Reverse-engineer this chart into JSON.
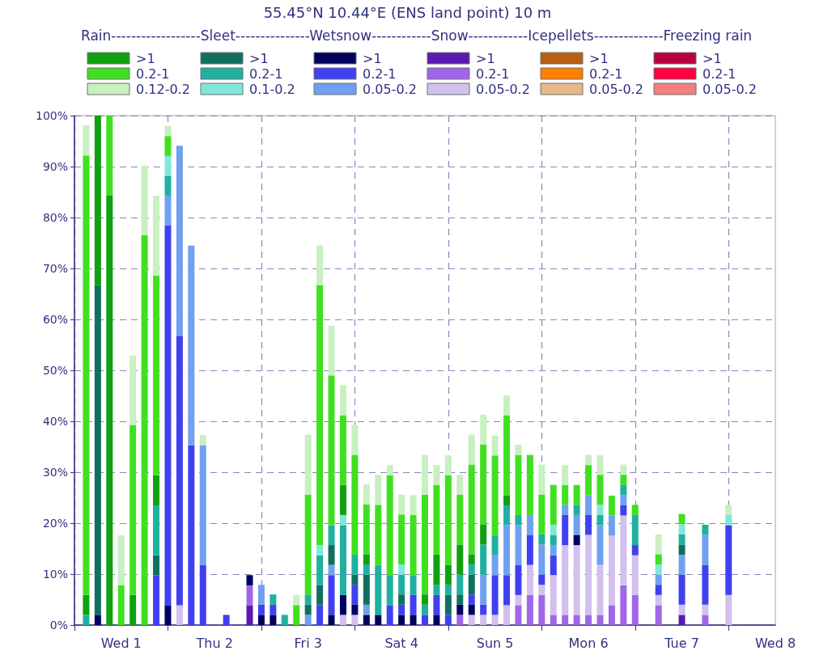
{
  "chart_data": {
    "type": "bar",
    "stacked": true,
    "title": "55.45°N 10.44°E (ENS land point) 10 m",
    "legend_title": "Rain------------------Sleet---------------Wetsnow------------Snow------------Icepellets--------------Freezing rain",
    "legend": "top",
    "grid": true,
    "categories": [
      null,
      null,
      null,
      null,
      "Wed 1",
      null,
      null,
      null,
      null,
      null,
      null,
      null,
      "Thu 2",
      null,
      null,
      null,
      null,
      null,
      null,
      null,
      "Fri 3",
      null,
      null,
      null,
      null,
      null,
      null,
      null,
      "Sat 4",
      null,
      null,
      null,
      null,
      null,
      null,
      null,
      "Sun 5",
      null,
      null,
      null,
      null,
      null,
      null,
      null,
      "Mon 6",
      null,
      null,
      null,
      null,
      null,
      null,
      null,
      "Tue 7",
      null,
      null,
      null,
      null,
      null,
      null,
      null,
      "Wed 8"
    ],
    "ylim": [
      0,
      100
    ],
    "yticks": [
      {
        "value": 0,
        "label": "0%"
      },
      {
        "value": 10,
        "label": "10%"
      },
      {
        "value": 20,
        "label": "20%"
      },
      {
        "value": 30,
        "label": "30%"
      },
      {
        "value": 40,
        "label": "40%"
      },
      {
        "value": 50,
        "label": "50%"
      },
      {
        "value": 60,
        "label": "60%"
      },
      {
        "value": 70,
        "label": "70%"
      },
      {
        "value": 80,
        "label": "80%"
      },
      {
        "value": 90,
        "label": "90%"
      },
      {
        "value": 100,
        "label": "100%"
      }
    ],
    "series": [
      {
        "name": ">1",
        "color": "#5a1ab0",
        "values": [
          0,
          0,
          0,
          0,
          0,
          0,
          0,
          0,
          0,
          0,
          0,
          0,
          0,
          0,
          0,
          3.9,
          0,
          0,
          0,
          0,
          0,
          0,
          0,
          0,
          0,
          0,
          0,
          0,
          0,
          0,
          0,
          0,
          0,
          0,
          0,
          0,
          0,
          0,
          0,
          0,
          0,
          0,
          0,
          0,
          0,
          0,
          0,
          0,
          0,
          0,
          0,
          0,
          2,
          0,
          0,
          0,
          0,
          0,
          0,
          0,
          0
        ]
      },
      {
        "name": "0.2-1",
        "color": "#a066e8",
        "values": [
          0,
          0,
          0,
          0,
          0,
          0,
          0,
          0,
          0,
          0,
          0,
          0,
          0,
          0,
          0,
          3.9,
          0,
          0,
          0,
          0,
          0,
          0,
          0,
          0,
          0,
          0,
          0,
          0,
          0,
          0,
          0,
          0,
          0,
          2,
          0,
          0,
          0,
          0,
          3.9,
          5.9,
          5.9,
          2,
          2,
          2,
          2,
          2,
          3.9,
          7.8,
          5.9,
          0,
          3.9,
          0,
          0,
          0,
          2,
          0,
          0,
          0,
          0,
          0,
          0
        ]
      },
      {
        "name": "0.05-0.2",
        "color": "#d2c0ee",
        "values": [
          0,
          0,
          0,
          0,
          0,
          0,
          0,
          0,
          0,
          3.9,
          0,
          0,
          0,
          0,
          0,
          0,
          0,
          0,
          0,
          0,
          0,
          0,
          0,
          2,
          2,
          0,
          0,
          0,
          0,
          0,
          0,
          0,
          0,
          0,
          2,
          2,
          2,
          3.9,
          2,
          5.9,
          2,
          7.8,
          13.7,
          13.7,
          15.7,
          9.8,
          13.7,
          13.7,
          7.8,
          0,
          2,
          0,
          2,
          0,
          2,
          0,
          5.9,
          0,
          0,
          0,
          0
        ]
      },
      {
        "name": ">1",
        "color": "#000060",
        "values": [
          0,
          0,
          2,
          0,
          0,
          0,
          0,
          0,
          3.9,
          0,
          0,
          0,
          0,
          0,
          0,
          2,
          2,
          2,
          0,
          0,
          0,
          0,
          2,
          3.9,
          2,
          2,
          2,
          0,
          2,
          2,
          0,
          2,
          0,
          2,
          2,
          0,
          0,
          0,
          0,
          0,
          0,
          0,
          0,
          2,
          0,
          0,
          0,
          0,
          0,
          0,
          0,
          0,
          0,
          0,
          0,
          0,
          0,
          0,
          0,
          0,
          0
        ]
      },
      {
        "name": "0.2-1",
        "color": "#4040f0",
        "values": [
          0,
          0,
          0,
          0,
          0,
          0,
          0,
          9.8,
          74.5,
          52.9,
          35.3,
          11.8,
          0,
          2,
          0,
          0,
          2,
          2,
          0,
          0,
          0,
          3.9,
          7.8,
          0,
          3.9,
          0,
          0,
          3.9,
          2,
          3.9,
          2,
          3.9,
          2,
          0,
          2,
          2,
          7.8,
          5.9,
          5.9,
          5.9,
          2,
          3.9,
          5.9,
          0,
          3.9,
          0,
          0,
          2,
          2,
          0,
          2,
          0,
          5.9,
          0,
          7.8,
          0,
          13.7,
          0,
          0,
          0,
          0
        ]
      },
      {
        "name": "0.05-0.2",
        "color": "#70a0f0",
        "values": [
          0,
          0,
          0,
          0,
          0,
          0,
          0,
          0,
          5.9,
          37.3,
          39.2,
          23.5,
          0,
          0,
          0,
          0,
          3.9,
          0,
          0,
          0,
          2,
          0,
          2,
          0,
          0,
          2,
          0,
          0,
          0,
          0,
          0,
          0,
          0,
          0,
          0,
          5.9,
          3.9,
          9.8,
          7.8,
          3.9,
          5.9,
          2,
          2,
          3.9,
          3.9,
          7.8,
          3.9,
          2,
          0,
          0,
          2,
          0,
          3.9,
          0,
          5.9,
          0,
          0,
          0,
          0,
          0,
          0
        ]
      },
      {
        "name": ">1",
        "color": "#107060",
        "values": [
          0,
          0,
          64.7,
          0,
          0,
          0,
          0,
          3.9,
          0,
          0,
          0,
          0,
          0,
          0,
          0,
          0,
          0,
          0,
          0,
          0,
          2,
          3.9,
          3.9,
          0,
          2,
          5.9,
          0,
          0,
          2,
          0,
          0,
          0,
          3.9,
          2,
          3.9,
          0,
          0,
          0,
          0,
          0,
          0,
          0,
          0,
          0,
          0,
          0,
          0,
          0,
          0,
          0,
          0,
          0,
          2,
          0,
          0,
          0,
          0,
          0,
          0,
          0,
          0
        ]
      },
      {
        "name": "0.2-1",
        "color": "#20b0a0",
        "values": [
          0,
          2,
          0,
          0,
          0,
          0,
          0,
          9.8,
          3.9,
          0,
          0,
          0,
          0,
          0,
          0,
          0,
          0,
          2,
          2,
          0,
          2,
          5.9,
          3.9,
          13.7,
          3.9,
          2,
          9.8,
          5.9,
          3.9,
          3.9,
          2,
          2,
          2,
          3.9,
          2,
          5.9,
          3.9,
          3.9,
          2,
          0,
          2,
          2,
          0,
          2,
          0,
          2,
          0,
          2,
          5.9,
          0,
          0,
          0,
          2,
          0,
          2,
          0,
          0,
          0,
          0,
          0,
          0
        ]
      },
      {
        "name": "0.1-0.2",
        "color": "#80e8d8",
        "values": [
          0,
          0,
          0,
          0,
          0,
          0,
          0,
          0,
          3.9,
          0,
          0,
          0,
          0,
          0,
          0,
          0,
          0,
          0,
          0,
          0,
          0,
          2,
          0,
          2,
          0,
          0,
          0,
          0,
          2,
          0,
          0,
          0,
          0,
          0,
          0,
          0,
          0,
          0,
          0,
          0,
          0,
          2,
          0,
          0,
          0,
          2,
          0,
          0,
          0,
          0,
          2,
          0,
          2,
          0,
          0,
          0,
          2,
          0,
          0,
          0,
          0
        ]
      },
      {
        "name": ">1",
        "color": "#10a010",
        "values": [
          0,
          3.9,
          33.3,
          84.3,
          0,
          5.9,
          0,
          5.9,
          0,
          0,
          0,
          0,
          0,
          0,
          0,
          0,
          0,
          0,
          0,
          0,
          0,
          0,
          0,
          5.9,
          0,
          2,
          0,
          0,
          0,
          0,
          2,
          5.9,
          3.9,
          5.9,
          2,
          3.9,
          0,
          2,
          0,
          0,
          0,
          0,
          0,
          0,
          0,
          0,
          0,
          0,
          0,
          0,
          0,
          0,
          0,
          0,
          0,
          0,
          0,
          0,
          0,
          0,
          0
        ]
      },
      {
        "name": "0.2-1",
        "color": "#40e020",
        "values": [
          0,
          86.3,
          0,
          15.7,
          7.8,
          33.3,
          76.5,
          39.2,
          3.9,
          0,
          0,
          0,
          0,
          0,
          0,
          0,
          0,
          0,
          0,
          3.9,
          19.6,
          51,
          29.4,
          13.7,
          19.6,
          9.8,
          11.8,
          19.6,
          9.8,
          11.8,
          19.6,
          13.7,
          17.6,
          9.8,
          17.6,
          15.7,
          15.7,
          15.7,
          11.8,
          11.8,
          7.8,
          7.8,
          3.9,
          3.9,
          5.9,
          5.9,
          3.9,
          2,
          2,
          0,
          2,
          0,
          2,
          0,
          0,
          0,
          0,
          0,
          0,
          0,
          0
        ]
      },
      {
        "name": "0.12-0.2",
        "color": "#c8f0c0",
        "values": [
          0,
          5.9,
          0,
          0,
          9.8,
          13.7,
          13.7,
          15.7,
          2,
          0,
          0,
          2,
          0,
          0,
          0,
          0,
          0,
          0,
          0,
          2,
          11.8,
          7.8,
          9.8,
          5.9,
          5.9,
          3.9,
          5.9,
          2,
          3.9,
          3.9,
          7.8,
          3.9,
          3.9,
          3.9,
          5.9,
          5.9,
          3.9,
          3.9,
          2,
          0,
          5.9,
          0,
          3.9,
          0,
          2,
          3.9,
          0,
          2,
          0,
          0,
          3.9,
          0,
          0,
          0,
          0,
          0,
          2,
          0,
          0,
          0,
          0
        ]
      },
      {
        "name": ">1",
        "color": "#b86010",
        "values": [
          0,
          0,
          0,
          0,
          0,
          0,
          0,
          0,
          0,
          0,
          0,
          0,
          0,
          0,
          0,
          0,
          0,
          0,
          0,
          0,
          0,
          0,
          0,
          0,
          0,
          0,
          0,
          0,
          0,
          0,
          0,
          0,
          0,
          0,
          0,
          0,
          0,
          0,
          0,
          0,
          0,
          0,
          0,
          0,
          0,
          0,
          0,
          0,
          0,
          0,
          0,
          0,
          0,
          0,
          0,
          0,
          0,
          0,
          0,
          0,
          0
        ]
      },
      {
        "name": "0.2-1",
        "color": "#ff8000",
        "values": [
          0,
          0,
          0,
          0,
          0,
          0,
          0,
          0,
          0,
          0,
          0,
          0,
          0,
          0,
          0,
          0,
          0,
          0,
          0,
          0,
          0,
          0,
          0,
          0,
          0,
          0,
          0,
          0,
          0,
          0,
          0,
          0,
          0,
          0,
          0,
          0,
          0,
          0,
          0,
          0,
          0,
          0,
          0,
          0,
          0,
          0,
          0,
          0,
          0,
          0,
          0,
          0,
          0,
          0,
          0,
          0,
          0,
          0,
          0,
          0,
          0
        ]
      },
      {
        "name": "0.05-0.2",
        "color": "#e8b888",
        "values": [
          0,
          0,
          0,
          0,
          0,
          0,
          0,
          0,
          0,
          0,
          0,
          0,
          0,
          0,
          0,
          0,
          0,
          0,
          0,
          0,
          0,
          0,
          0,
          0,
          0,
          0,
          0,
          0,
          0,
          0,
          0,
          0,
          0,
          0,
          0,
          0,
          0,
          0,
          0,
          0,
          0,
          0,
          0,
          0,
          0,
          0,
          0,
          0,
          0,
          0,
          0,
          0,
          0,
          0,
          0,
          0,
          0,
          0,
          0,
          0,
          0
        ]
      },
      {
        "name": ">1",
        "color": "#b80040",
        "values": [
          0,
          0,
          0,
          0,
          0,
          0,
          0,
          0,
          0,
          0,
          0,
          0,
          0,
          0,
          0,
          0,
          0,
          0,
          0,
          0,
          0,
          0,
          0,
          0,
          0,
          0,
          0,
          0,
          0,
          0,
          0,
          0,
          0,
          0,
          0,
          0,
          0,
          0,
          0,
          0,
          0,
          0,
          0,
          0,
          0,
          0,
          0,
          0,
          0,
          0,
          0,
          0,
          0,
          0,
          0,
          0,
          0,
          0,
          0,
          0,
          0
        ]
      },
      {
        "name": "0.2-1",
        "color": "#ff0040",
        "values": [
          0,
          0,
          0,
          0,
          0,
          0,
          0,
          0,
          0,
          0,
          0,
          0,
          0,
          0,
          0,
          0,
          0,
          0,
          0,
          0,
          0,
          0,
          0,
          0,
          0,
          0,
          0,
          0,
          0,
          0,
          0,
          0,
          0,
          0,
          0,
          0,
          0,
          0,
          0,
          0,
          0,
          0,
          0,
          0,
          0,
          0,
          0,
          0,
          0,
          0,
          0,
          0,
          0,
          0,
          0,
          0,
          0,
          0,
          0,
          0,
          0
        ]
      },
      {
        "name": "0.05-0.2",
        "color": "#f08080",
        "values": [
          0,
          0,
          0,
          0,
          0,
          0,
          0,
          0,
          0,
          0,
          0,
          0,
          0,
          0,
          0,
          0,
          0,
          0,
          0,
          0,
          0,
          0,
          0,
          0,
          0,
          0,
          0,
          0,
          0,
          0,
          0,
          0,
          0,
          0,
          0,
          0,
          0,
          0,
          0,
          0,
          0,
          0,
          0,
          0,
          0,
          0,
          0,
          0,
          0,
          0,
          0,
          0,
          0,
          0,
          0,
          0,
          0,
          0,
          0,
          0,
          0
        ]
      }
    ]
  }
}
